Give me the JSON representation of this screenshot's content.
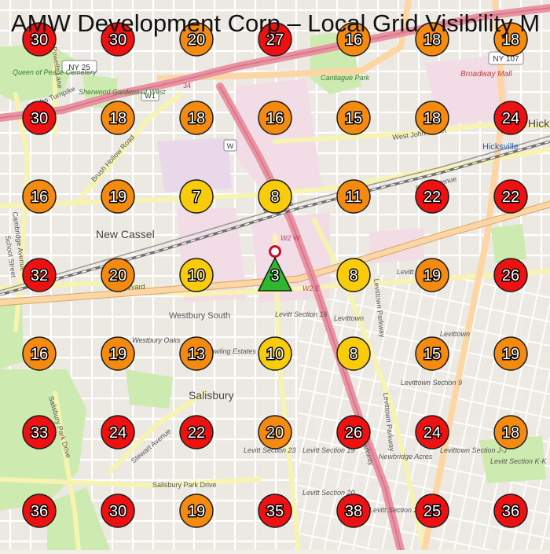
{
  "title": "AMW Development Corp – Local Grid Visibility M",
  "colors": {
    "red": "#ee1111",
    "orange": "#f58a10",
    "yellow": "#f8cc0a",
    "green": "#2db82d"
  },
  "grid": [
    [
      30,
      30,
      20,
      27,
      16,
      18,
      18
    ],
    [
      30,
      18,
      18,
      16,
      15,
      18,
      24
    ],
    [
      16,
      19,
      7,
      8,
      11,
      22,
      22
    ],
    [
      32,
      20,
      10,
      null,
      8,
      19,
      26
    ],
    [
      16,
      19,
      13,
      10,
      8,
      15,
      19
    ],
    [
      33,
      24,
      22,
      20,
      26,
      24,
      18
    ],
    [
      36,
      30,
      19,
      35,
      38,
      25,
      36
    ]
  ],
  "center_marker": {
    "rank": "3"
  },
  "map_labels": {
    "new_cassel": "New Cassel",
    "westbury_south": "Westbury South",
    "salisbury": "Salisbury",
    "hicksville_label": "Hicksville",
    "hicks_cut": "Hicks",
    "broadway_mall": "Broadway Mall",
    "queen_of_peace": "Queen of Peace Cemetery",
    "sherwood_gardens": "Sherwood Gardens at West",
    "cantiague_park": "Cantiague Park",
    "westbury_oaks": "Westbury Oaks",
    "bowling_estates": "Bowling Estates",
    "levitt_16": "Levitt Section 16",
    "levitt_14": "Levitt Section 14",
    "levittown_1": "Levittown",
    "levittown_2": "Levittown",
    "levittown_section_9": "Levittown Section 9",
    "levitt_23": "Levitt Section 23",
    "levitt_19": "Levitt Section 19",
    "newbridge_acres": "Newbridge Acres",
    "levittown_section_jj": "Levittown Section J-J",
    "levitt_section_kk": "Levitt Section K-K",
    "levitt_20": "Levitt Section 20",
    "levitt_21": "Levitt Section 21",
    "west_john_street": "West John Street",
    "duffy_avenue": "Duffy Avenue",
    "brush_hollow_road": "Brush Hollow Road",
    "cambridge_avenue": "Cambridge Avenue",
    "school_street": "School Street",
    "powells_lane": "Powells Lane",
    "jericho_turnpike": "Jericho Turnpike",
    "salisbury_park_drive": "Salisbury Park Drive",
    "salisbury_park_drive_v": "Salisbury Park Drive",
    "stewart_avenue": "Stewart Avenue",
    "levittown_parkway": "Levittown Parkway",
    "levittown_parkway_2": "Levittown Parkway",
    "main_line": "Main Line",
    "ny25": "NY 25",
    "ny107": "NY 107",
    "w1": "W1",
    "w_shield": "W",
    "w2w": "W2 W",
    "w2e": "W2 E",
    "route34": "34",
    "blvd": "oulevard",
    "levittown_prkw_cut": "Parkway"
  }
}
